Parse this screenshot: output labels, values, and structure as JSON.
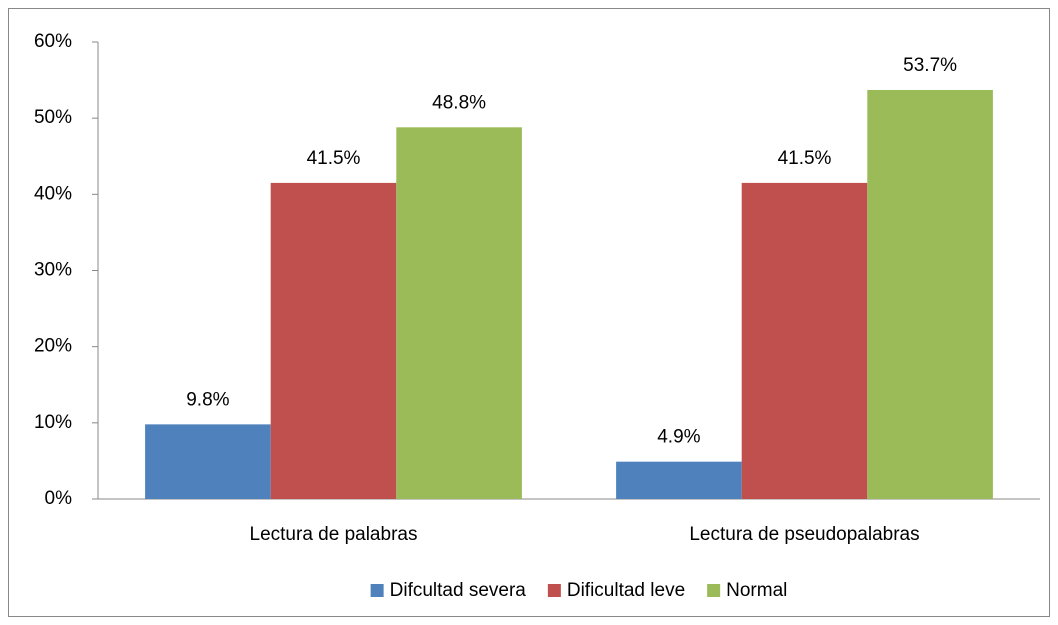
{
  "chart_data": {
    "type": "bar",
    "categories": [
      "Lectura de palabras",
      "Lectura de pseudopalabras"
    ],
    "series": [
      {
        "name": "Difcultad severa",
        "color": "#4f81bd",
        "values": [
          9.8,
          4.9
        ],
        "value_labels": [
          "9.8%",
          "4.9%"
        ]
      },
      {
        "name": "Dificultad leve",
        "color": "#c0504d",
        "values": [
          41.5,
          41.5
        ],
        "value_labels": [
          "41.5%",
          "41.5%"
        ]
      },
      {
        "name": "Normal",
        "color": "#9bbb59",
        "values": [
          48.8,
          53.7
        ],
        "value_labels": [
          "48.8%",
          "53.7%"
        ]
      }
    ],
    "ylim": [
      0,
      60
    ],
    "yticks": [
      {
        "value": 0,
        "label": "0%"
      },
      {
        "value": 10,
        "label": "10%"
      },
      {
        "value": 20,
        "label": "20%"
      },
      {
        "value": 30,
        "label": "30%"
      },
      {
        "value": 40,
        "label": "40%"
      },
      {
        "value": 50,
        "label": "50%"
      },
      {
        "value": 60,
        "label": "60%"
      }
    ],
    "grid": false,
    "legend": "bottom"
  }
}
